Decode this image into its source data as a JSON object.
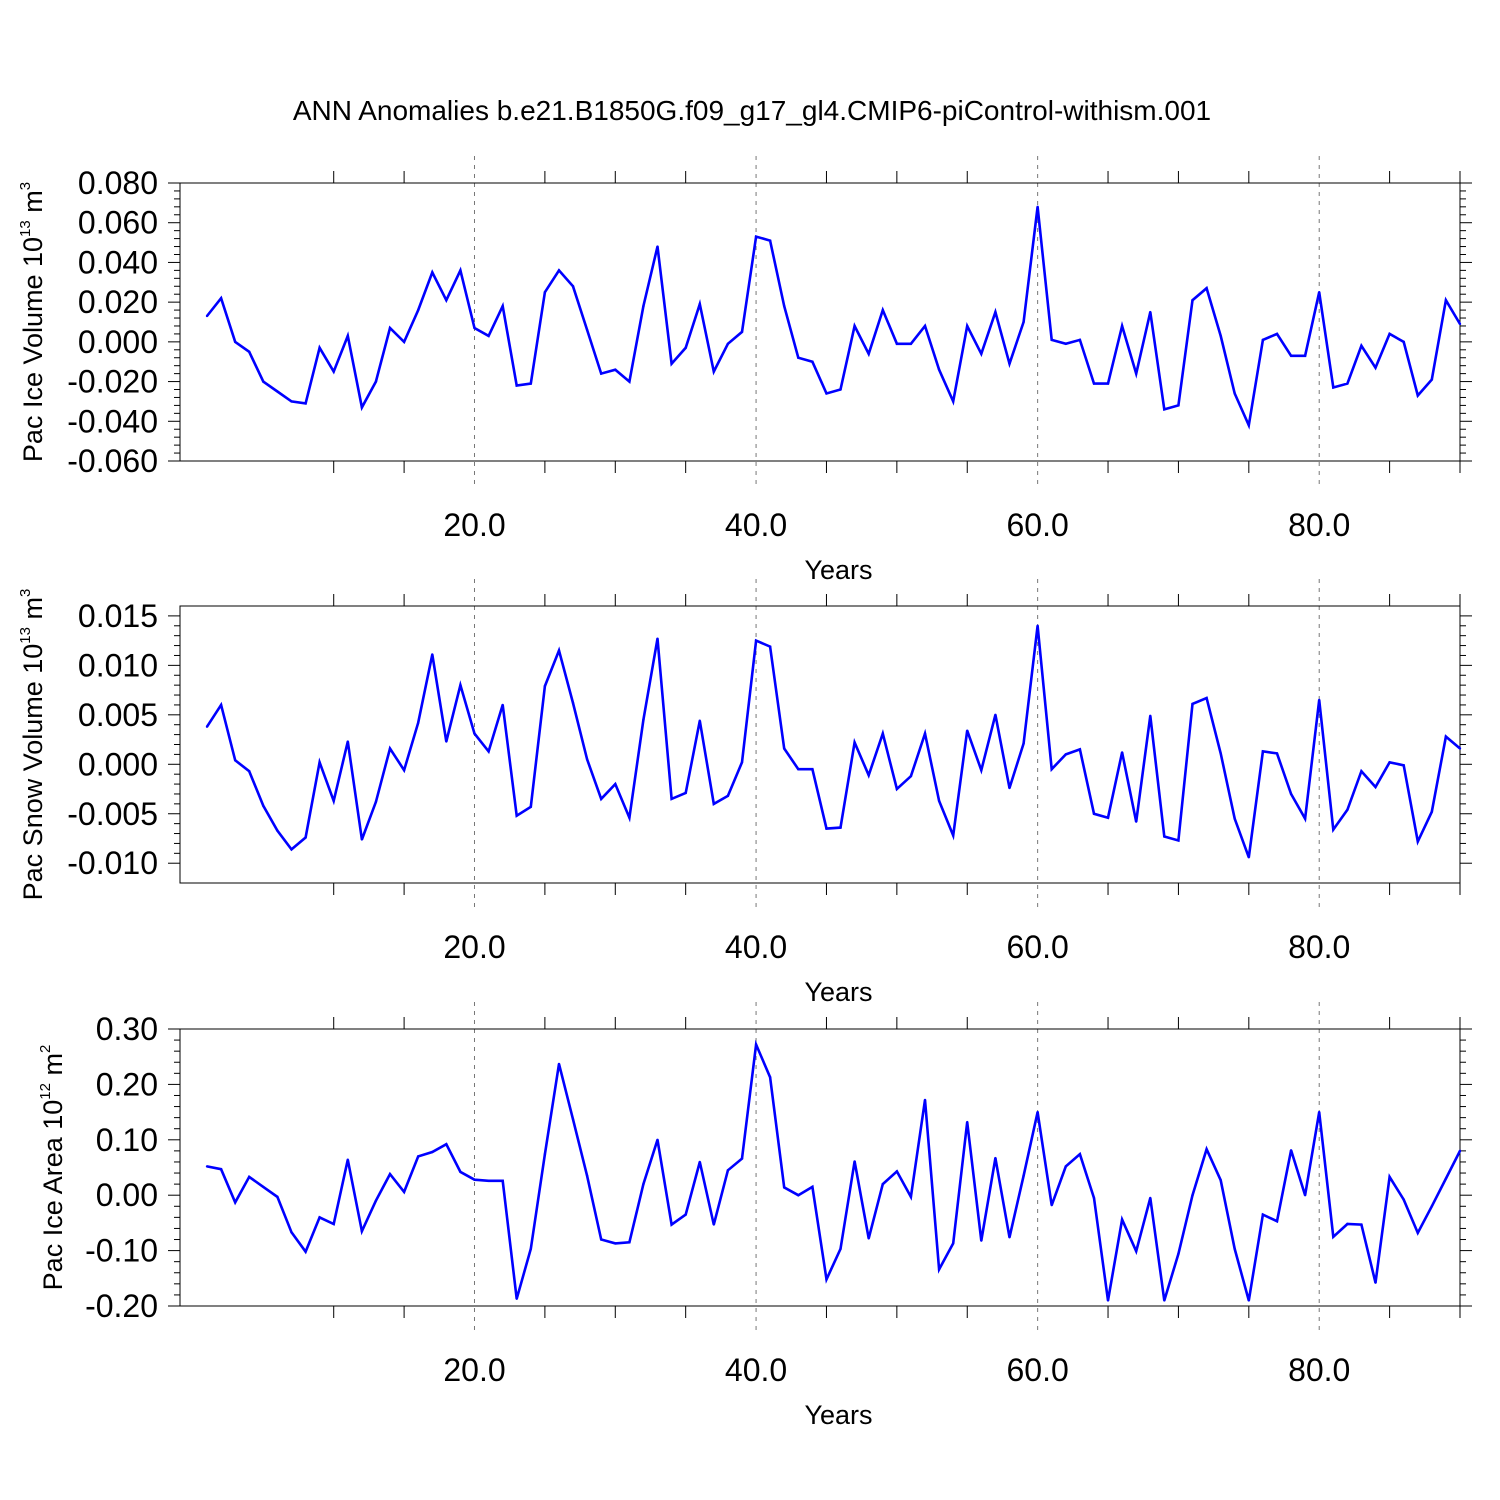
{
  "chart_data": [
    {
      "type": "line",
      "title": "ANN Anomalies b.e21.B1850G.f09_g17_gl4.CMIP6-piControl-withism.001",
      "xlabel": "Years",
      "ylabel": {
        "text": "Pac Ice Volume 10",
        "sup": "13",
        "unit": " m",
        "unit_sup": "3"
      },
      "xlim": [
        1,
        90
      ],
      "ylim": [
        -0.06,
        0.08
      ],
      "x_ticks": [
        20,
        40,
        60,
        80
      ],
      "x_tick_labels": [
        "20.0",
        "40.0",
        "60.0",
        "80.0"
      ],
      "y_ticks": [
        -0.06,
        -0.04,
        -0.02,
        0.0,
        0.02,
        0.04,
        0.06,
        0.08
      ],
      "y_tick_labels": [
        "-0.060",
        "-0.040",
        "-0.020",
        "0.000",
        "0.020",
        "0.040",
        "0.060",
        "0.080"
      ],
      "grid": "vertical dashed at major x ticks",
      "series": [
        {
          "color": "#0000ff",
          "x": [
            1,
            2,
            3,
            4,
            5,
            6,
            7,
            8,
            9,
            10,
            11,
            12,
            13,
            14,
            15,
            16,
            17,
            18,
            19,
            20,
            21,
            22,
            23,
            24,
            25,
            26,
            27,
            28,
            29,
            30,
            31,
            32,
            33,
            34,
            35,
            36,
            37,
            38,
            39,
            40,
            41,
            42,
            43,
            44,
            45,
            46,
            47,
            48,
            49,
            50,
            51,
            52,
            53,
            54,
            55,
            56,
            57,
            58,
            59,
            60,
            61,
            62,
            63,
            64,
            65,
            66,
            67,
            68,
            69,
            70,
            71,
            72,
            73,
            74,
            75,
            76,
            77,
            78,
            79,
            80,
            81,
            82,
            83,
            84,
            85,
            86,
            87,
            88,
            89,
            90
          ],
          "values": [
            0.013,
            0.022,
            0.0,
            -0.005,
            -0.02,
            -0.025,
            -0.03,
            -0.031,
            -0.003,
            -0.015,
            0.003,
            -0.033,
            -0.02,
            0.007,
            0.0,
            0.016,
            0.035,
            0.021,
            0.036,
            0.007,
            0.003,
            0.018,
            -0.022,
            -0.021,
            0.025,
            0.036,
            0.028,
            0.006,
            -0.016,
            -0.014,
            -0.02,
            0.018,
            0.048,
            -0.011,
            -0.003,
            0.019,
            -0.015,
            -0.001,
            0.005,
            0.053,
            0.051,
            0.018,
            -0.008,
            -0.01,
            -0.026,
            -0.024,
            0.008,
            -0.006,
            0.016,
            -0.001,
            -0.001,
            0.008,
            -0.014,
            -0.03,
            0.008,
            -0.006,
            0.015,
            -0.011,
            0.01,
            0.068,
            0.001,
            -0.001,
            0.001,
            -0.021,
            -0.021,
            0.008,
            -0.016,
            0.015,
            -0.034,
            -0.032,
            0.021,
            0.027,
            0.003,
            -0.026,
            -0.042,
            0.001,
            0.004,
            -0.007,
            -0.007,
            0.025,
            -0.023,
            -0.021,
            -0.002,
            -0.013,
            0.004,
            0.0,
            -0.027,
            -0.019,
            0.021,
            0.009
          ]
        }
      ]
    },
    {
      "type": "line",
      "xlabel": "Years",
      "ylabel": {
        "text": "Pac Snow Volume 10",
        "sup": "13",
        "unit": " m",
        "unit_sup": "3"
      },
      "xlim": [
        1,
        90
      ],
      "ylim": [
        -0.012,
        0.016
      ],
      "x_ticks": [
        20,
        40,
        60,
        80
      ],
      "x_tick_labels": [
        "20.0",
        "40.0",
        "60.0",
        "80.0"
      ],
      "y_ticks": [
        -0.01,
        -0.005,
        0.0,
        0.005,
        0.01,
        0.015
      ],
      "y_tick_labels": [
        "-0.010",
        "-0.005",
        "0.000",
        "0.005",
        "0.010",
        "0.015"
      ],
      "grid": "vertical dashed at major x ticks",
      "series": [
        {
          "color": "#0000ff",
          "x": [
            1,
            2,
            3,
            4,
            5,
            6,
            7,
            8,
            9,
            10,
            11,
            12,
            13,
            14,
            15,
            16,
            17,
            18,
            19,
            20,
            21,
            22,
            23,
            24,
            25,
            26,
            27,
            28,
            29,
            30,
            31,
            32,
            33,
            34,
            35,
            36,
            37,
            38,
            39,
            40,
            41,
            42,
            43,
            44,
            45,
            46,
            47,
            48,
            49,
            50,
            51,
            52,
            53,
            54,
            55,
            56,
            57,
            58,
            59,
            60,
            61,
            62,
            63,
            64,
            65,
            66,
            67,
            68,
            69,
            70,
            71,
            72,
            73,
            74,
            75,
            76,
            77,
            78,
            79,
            80,
            81,
            82,
            83,
            84,
            85,
            86,
            87,
            88,
            89,
            90
          ],
          "values": [
            0.0038,
            0.006,
            0.0004,
            -0.0007,
            -0.0042,
            -0.0067,
            -0.0086,
            -0.0074,
            0.0002,
            -0.0037,
            0.0023,
            -0.0076,
            -0.0038,
            0.0016,
            -0.0006,
            0.0042,
            0.0111,
            0.0023,
            0.008,
            0.0031,
            0.0013,
            0.006,
            -0.0052,
            -0.0043,
            0.0079,
            0.0115,
            0.0062,
            0.0005,
            -0.0035,
            -0.002,
            -0.0054,
            0.0045,
            0.0127,
            -0.0035,
            -0.0029,
            0.0044,
            -0.004,
            -0.0032,
            0.0002,
            0.0125,
            0.0119,
            0.0016,
            -0.0005,
            -0.0005,
            -0.0065,
            -0.0064,
            0.0022,
            -0.0011,
            0.0031,
            -0.0025,
            -0.0012,
            0.0031,
            -0.0037,
            -0.0072,
            0.0034,
            -0.0006,
            0.005,
            -0.0024,
            0.0021,
            0.014,
            -0.0005,
            0.001,
            0.0015,
            -0.005,
            -0.0054,
            0.0012,
            -0.0058,
            0.0049,
            -0.0073,
            -0.0077,
            0.0061,
            0.0067,
            0.0011,
            -0.0055,
            -0.0094,
            0.0013,
            0.0011,
            -0.003,
            -0.0055,
            0.0065,
            -0.0066,
            -0.0046,
            -0.0007,
            -0.0023,
            0.0002,
            -0.0001,
            -0.0078,
            -0.0048,
            0.0028,
            0.0016
          ]
        }
      ]
    },
    {
      "type": "line",
      "xlabel": "Years",
      "ylabel": {
        "text": "Pac Ice Area 10",
        "sup": "12",
        "unit": " m",
        "unit_sup": "2"
      },
      "xlim": [
        1,
        90
      ],
      "ylim": [
        -0.2,
        0.3
      ],
      "x_ticks": [
        20,
        40,
        60,
        80
      ],
      "x_tick_labels": [
        "20.0",
        "40.0",
        "60.0",
        "80.0"
      ],
      "y_ticks": [
        -0.2,
        -0.1,
        0.0,
        0.1,
        0.2,
        0.3
      ],
      "y_tick_labels": [
        "-0.20",
        "-0.10",
        "0.00",
        "0.10",
        "0.20",
        "0.30"
      ],
      "grid": "vertical dashed at major x ticks",
      "series": [
        {
          "color": "#0000ff",
          "x": [
            1,
            2,
            3,
            4,
            5,
            6,
            7,
            8,
            9,
            10,
            11,
            12,
            13,
            14,
            15,
            16,
            17,
            18,
            19,
            20,
            21,
            22,
            23,
            24,
            25,
            26,
            27,
            28,
            29,
            30,
            31,
            32,
            33,
            34,
            35,
            36,
            37,
            38,
            39,
            40,
            41,
            42,
            43,
            44,
            45,
            46,
            47,
            48,
            49,
            50,
            51,
            52,
            53,
            54,
            55,
            56,
            57,
            58,
            59,
            60,
            61,
            62,
            63,
            64,
            65,
            66,
            67,
            68,
            69,
            70,
            71,
            72,
            73,
            74,
            75,
            76,
            77,
            78,
            79,
            80,
            81,
            82,
            83,
            84,
            85,
            86,
            87,
            88,
            89,
            90
          ],
          "values": [
            0.052,
            0.047,
            -0.013,
            0.033,
            0.015,
            -0.003,
            -0.067,
            -0.102,
            -0.04,
            -0.052,
            0.064,
            -0.065,
            -0.01,
            0.038,
            0.006,
            0.07,
            0.078,
            0.092,
            0.042,
            0.028,
            0.026,
            0.026,
            -0.187,
            -0.097,
            0.074,
            0.237,
            0.137,
            0.035,
            -0.08,
            -0.087,
            -0.085,
            0.02,
            0.1,
            -0.053,
            -0.035,
            0.06,
            -0.053,
            0.045,
            0.066,
            0.272,
            0.213,
            0.014,
            0.0,
            0.015,
            -0.152,
            -0.097,
            0.061,
            -0.078,
            0.02,
            0.043,
            -0.003,
            0.172,
            -0.134,
            -0.087,
            0.132,
            -0.082,
            0.067,
            -0.076,
            0.035,
            0.15,
            -0.018,
            0.052,
            0.074,
            -0.005,
            -0.19,
            -0.044,
            -0.101,
            -0.005,
            -0.19,
            -0.106,
            0.0,
            0.083,
            0.027,
            -0.097,
            -0.19,
            -0.035,
            -0.047,
            0.081,
            0.0,
            0.15,
            -0.075,
            -0.052,
            -0.053,
            -0.158,
            0.033,
            -0.008,
            -0.068,
            -0.02,
            0.03,
            0.08
          ]
        }
      ]
    }
  ]
}
